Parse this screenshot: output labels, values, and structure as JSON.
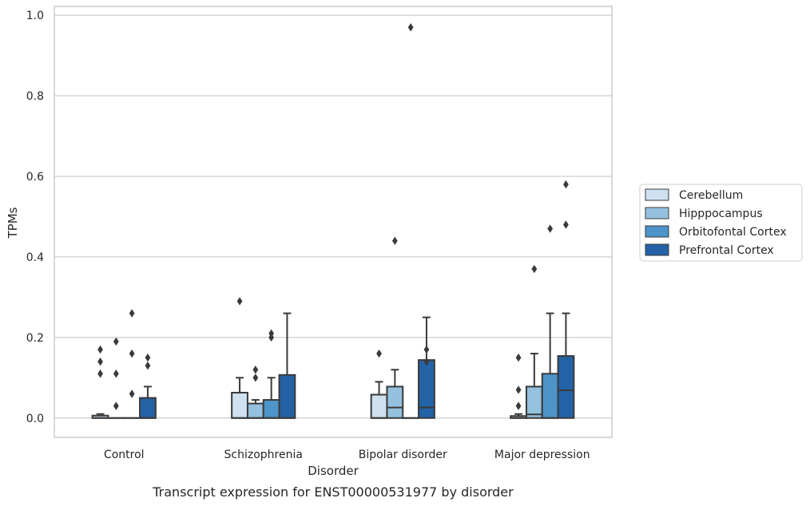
{
  "caption": "Transcript expression for ENST00000531977 by disorder",
  "colors": {
    "grid": "#cccccc",
    "frame": "#cccccc",
    "stroke": "#3a3a3a",
    "series": [
      "#cfe0f0",
      "#94c1de",
      "#4d94c8",
      "#2362a5"
    ]
  },
  "chart_data": {
    "type": "box",
    "xlabel": "Disorder",
    "ylabel": "TPMs",
    "ylim": [
      -0.048,
      1.022
    ],
    "yticks": [
      "0.0",
      "0.2",
      "0.4",
      "0.6",
      "0.8",
      "1.0"
    ],
    "ytick_values": [
      0.0,
      0.2,
      0.4,
      0.6,
      0.8,
      1.0
    ],
    "grid": true,
    "legend_position": "right",
    "categories": [
      "Control",
      "Schizophrenia",
      "Bipolar disorder",
      "Major depression"
    ],
    "series": [
      {
        "name": "Cerebellum",
        "boxes": [
          {
            "q1": 0.0,
            "median": 0.0,
            "q3": 0.006,
            "whisker_low": 0.0,
            "whisker_high": 0.01,
            "outliers": [
              0.17,
              0.14,
              0.11
            ]
          },
          {
            "q1": 0.0,
            "median": 0.0,
            "q3": 0.063,
            "whisker_low": 0.0,
            "whisker_high": 0.1,
            "outliers": [
              0.29
            ]
          },
          {
            "q1": 0.0,
            "median": 0.0,
            "q3": 0.058,
            "whisker_low": 0.0,
            "whisker_high": 0.09,
            "outliers": [
              0.16
            ]
          },
          {
            "q1": 0.0,
            "median": 0.0,
            "q3": 0.005,
            "whisker_low": 0.0,
            "whisker_high": 0.01,
            "outliers": [
              0.15,
              0.07,
              0.03
            ]
          }
        ]
      },
      {
        "name": "Hipppocampus",
        "boxes": [
          {
            "q1": 0.0,
            "median": 0.0,
            "q3": 0.0,
            "whisker_low": 0.0,
            "whisker_high": 0.0,
            "outliers": [
              0.19,
              0.11,
              0.03
            ]
          },
          {
            "q1": 0.0,
            "median": 0.0,
            "q3": 0.036,
            "whisker_low": 0.0,
            "whisker_high": 0.045,
            "outliers": [
              0.12,
              0.1
            ]
          },
          {
            "q1": 0.0,
            "median": 0.026,
            "q3": 0.078,
            "whisker_low": 0.0,
            "whisker_high": 0.12,
            "outliers": [
              0.44
            ]
          },
          {
            "q1": 0.0,
            "median": 0.009,
            "q3": 0.078,
            "whisker_low": 0.0,
            "whisker_high": 0.16,
            "outliers": [
              0.37
            ]
          }
        ]
      },
      {
        "name": "Orbitofontal Cortex",
        "boxes": [
          {
            "q1": 0.0,
            "median": 0.0,
            "q3": 0.0,
            "whisker_low": 0.0,
            "whisker_high": 0.0,
            "outliers": [
              0.26,
              0.16,
              0.06
            ]
          },
          {
            "q1": 0.0,
            "median": 0.0,
            "q3": 0.045,
            "whisker_low": 0.0,
            "whisker_high": 0.1,
            "outliers": [
              0.21,
              0.2
            ]
          },
          {
            "q1": 0.0,
            "median": 0.0,
            "q3": 0.0,
            "whisker_low": 0.0,
            "whisker_high": 0.0,
            "outliers": [
              0.97
            ]
          },
          {
            "q1": 0.0,
            "median": 0.0,
            "q3": 0.11,
            "whisker_low": 0.0,
            "whisker_high": 0.26,
            "outliers": [
              0.47
            ]
          }
        ]
      },
      {
        "name": "Prefrontal Cortex",
        "boxes": [
          {
            "q1": 0.0,
            "median": 0.0,
            "q3": 0.05,
            "whisker_low": 0.0,
            "whisker_high": 0.078,
            "outliers": [
              0.15,
              0.13
            ]
          },
          {
            "q1": 0.0,
            "median": 0.0,
            "q3": 0.107,
            "whisker_low": 0.0,
            "whisker_high": 0.26,
            "outliers": []
          },
          {
            "q1": 0.0,
            "median": 0.026,
            "q3": 0.144,
            "whisker_low": 0.0,
            "whisker_high": 0.25,
            "outliers": [
              0.17,
              0.14
            ]
          },
          {
            "q1": 0.0,
            "median": 0.069,
            "q3": 0.154,
            "whisker_low": 0.0,
            "whisker_high": 0.26,
            "outliers": [
              0.58,
              0.48
            ]
          }
        ]
      }
    ]
  }
}
